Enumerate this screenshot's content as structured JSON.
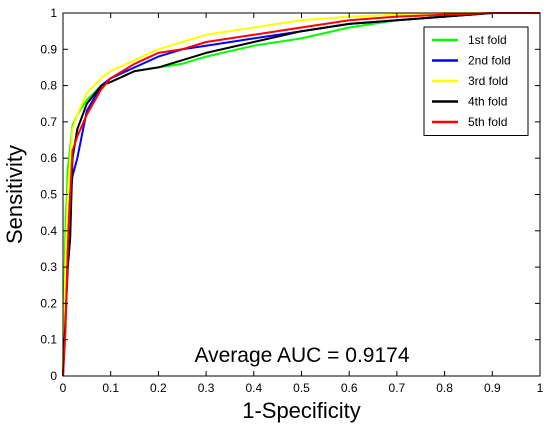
{
  "chart_data": {
    "type": "line",
    "title": "",
    "xlabel": "1-Specificity",
    "ylabel": "Sensitivity",
    "xlim": [
      0,
      1
    ],
    "ylim": [
      0,
      1
    ],
    "xticks": [
      "0",
      "0.1",
      "0.2",
      "0.3",
      "0.4",
      "0.5",
      "0.6",
      "0.7",
      "0.8",
      "0.9",
      "1"
    ],
    "yticks": [
      "0",
      "0.1",
      "0.2",
      "0.3",
      "0.4",
      "0.5",
      "0.6",
      "0.7",
      "0.8",
      "0.9",
      "1"
    ],
    "grid": false,
    "legend_position": "top-right",
    "annotation": "Average AUC = 0.9174",
    "series": [
      {
        "name": "1st fold",
        "color": "#00ff00",
        "x": [
          0,
          0.005,
          0.01,
          0.015,
          0.02,
          0.03,
          0.05,
          0.08,
          0.1,
          0.15,
          0.2,
          0.25,
          0.3,
          0.4,
          0.5,
          0.6,
          0.7,
          0.8,
          0.9,
          1.0
        ],
        "y": [
          0,
          0.4,
          0.57,
          0.63,
          0.69,
          0.72,
          0.76,
          0.8,
          0.81,
          0.84,
          0.85,
          0.86,
          0.88,
          0.91,
          0.93,
          0.96,
          0.98,
          0.99,
          1.0,
          1.0
        ]
      },
      {
        "name": "2nd fold",
        "color": "#0000ff",
        "x": [
          0,
          0.005,
          0.01,
          0.015,
          0.02,
          0.03,
          0.05,
          0.08,
          0.1,
          0.15,
          0.2,
          0.25,
          0.3,
          0.4,
          0.5,
          0.6,
          0.7,
          0.8,
          0.9,
          1.0
        ],
        "y": [
          0,
          0.2,
          0.38,
          0.5,
          0.55,
          0.6,
          0.73,
          0.8,
          0.82,
          0.85,
          0.88,
          0.9,
          0.91,
          0.93,
          0.95,
          0.97,
          0.98,
          0.99,
          1.0,
          1.0
        ]
      },
      {
        "name": "3rd fold",
        "color": "#ffff00",
        "x": [
          0,
          0.005,
          0.01,
          0.015,
          0.02,
          0.03,
          0.05,
          0.08,
          0.1,
          0.15,
          0.2,
          0.25,
          0.3,
          0.4,
          0.5,
          0.6,
          0.7,
          0.8,
          0.9,
          1.0
        ],
        "y": [
          0,
          0.3,
          0.5,
          0.6,
          0.68,
          0.72,
          0.78,
          0.82,
          0.84,
          0.87,
          0.9,
          0.92,
          0.94,
          0.96,
          0.98,
          0.99,
          0.995,
          1.0,
          1.0,
          1.0
        ]
      },
      {
        "name": "4th fold",
        "color": "#000000",
        "x": [
          0,
          0.005,
          0.01,
          0.015,
          0.02,
          0.03,
          0.05,
          0.08,
          0.1,
          0.15,
          0.2,
          0.25,
          0.3,
          0.4,
          0.5,
          0.6,
          0.7,
          0.8,
          0.9,
          1.0
        ],
        "y": [
          0,
          0.15,
          0.3,
          0.38,
          0.6,
          0.68,
          0.75,
          0.8,
          0.81,
          0.84,
          0.85,
          0.87,
          0.89,
          0.92,
          0.95,
          0.97,
          0.98,
          0.99,
          1.0,
          1.0
        ]
      },
      {
        "name": "5th fold",
        "color": "#ff0000",
        "x": [
          0,
          0.005,
          0.01,
          0.015,
          0.02,
          0.03,
          0.05,
          0.08,
          0.1,
          0.15,
          0.2,
          0.25,
          0.3,
          0.4,
          0.5,
          0.6,
          0.7,
          0.8,
          0.9,
          1.0
        ],
        "y": [
          0,
          0.12,
          0.35,
          0.5,
          0.62,
          0.66,
          0.72,
          0.79,
          0.82,
          0.86,
          0.89,
          0.9,
          0.92,
          0.94,
          0.96,
          0.98,
          0.99,
          0.995,
          1.0,
          1.0
        ]
      }
    ]
  }
}
